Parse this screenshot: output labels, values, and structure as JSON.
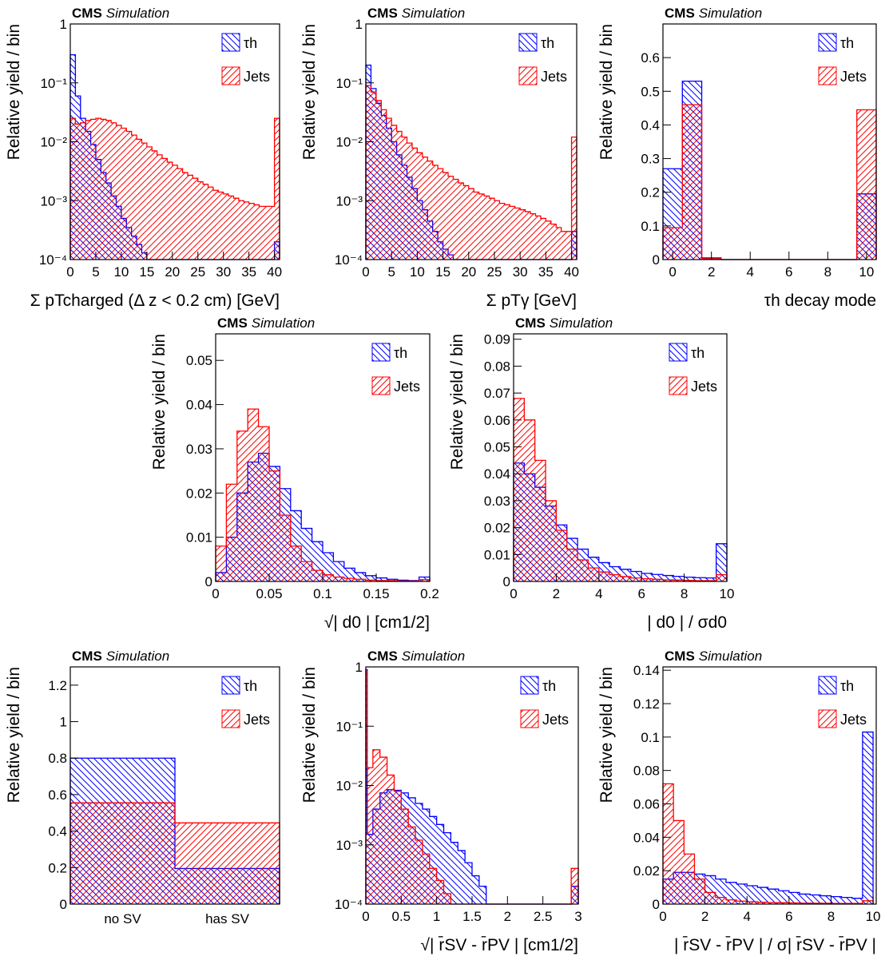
{
  "chart_data": [
    {
      "type": "histogram",
      "title": "CMS",
      "subtitle": "Simulation",
      "ylabel": "Relative yield / bin",
      "xlabel": "Σ pTcharged (Δ z < 0.2 cm) [GeV]",
      "log": true,
      "legend": "upper right",
      "bins": [
        0,
        1,
        2,
        3,
        4,
        5,
        6,
        7,
        8,
        9,
        10,
        11,
        12,
        13,
        14,
        15,
        16,
        17,
        18,
        19,
        20,
        21,
        22,
        23,
        24,
        25,
        26,
        27,
        28,
        29,
        30,
        31,
        32,
        33,
        34,
        35,
        36,
        37,
        38,
        39,
        40,
        41
      ],
      "xlim": [
        0,
        41
      ],
      "xticks": [
        0,
        5,
        10,
        15,
        20,
        25,
        30,
        35,
        40
      ],
      "ylim": [
        0.0001,
        1
      ],
      "yticks": [
        {
          "value": 0.0001,
          "label": "10⁻⁴"
        },
        {
          "value": 0.001,
          "label": "10⁻³"
        },
        {
          "value": 0.01,
          "label": "10⁻²"
        },
        {
          "value": 0.1,
          "label": "10⁻¹"
        },
        1
      ],
      "series": [
        {
          "name": "τh",
          "color": "#0000ff",
          "values": [
            0.3,
            0.06,
            0.025,
            0.015,
            0.009,
            0.005,
            0.003,
            0.002,
            0.0012,
            0.0008,
            0.0005,
            0.00035,
            0.00025,
            0.00018,
            0.00013,
            0.0001,
            0,
            0,
            0,
            0,
            0,
            0,
            0,
            0,
            0,
            0,
            0,
            0,
            0,
            0,
            0,
            0,
            0,
            0,
            0,
            0,
            0,
            0,
            0,
            0,
            0.0002
          ]
        },
        {
          "name": "Jets",
          "color": "#ff0000",
          "values": [
            0.025,
            0.02,
            0.021,
            0.023,
            0.024,
            0.025,
            0.024,
            0.023,
            0.021,
            0.019,
            0.017,
            0.015,
            0.013,
            0.011,
            0.0095,
            0.0082,
            0.007,
            0.006,
            0.0052,
            0.0045,
            0.004,
            0.0035,
            0.003,
            0.0027,
            0.0024,
            0.0021,
            0.0019,
            0.0017,
            0.0015,
            0.0014,
            0.0013,
            0.0012,
            0.0011,
            0.001,
            0.00095,
            0.0009,
            0.00085,
            0.0008,
            0.0008,
            0.0008,
            0.025
          ]
        }
      ]
    },
    {
      "type": "histogram",
      "title": "CMS",
      "subtitle": "Simulation",
      "ylabel": "Relative yield / bin",
      "xlabel": "Σ pTγ [GeV]",
      "log": true,
      "legend": "upper right",
      "bins": [
        0,
        1,
        2,
        3,
        4,
        5,
        6,
        7,
        8,
        9,
        10,
        11,
        12,
        13,
        14,
        15,
        16,
        17,
        18,
        19,
        20,
        21,
        22,
        23,
        24,
        25,
        26,
        27,
        28,
        29,
        30,
        31,
        32,
        33,
        34,
        35,
        36,
        37,
        38,
        39,
        40,
        41
      ],
      "xlim": [
        0,
        41
      ],
      "xticks": [
        0,
        5,
        10,
        15,
        20,
        25,
        30,
        35,
        40
      ],
      "ylim": [
        0.0001,
        1
      ],
      "yticks": [
        {
          "value": 0.0001,
          "label": "10⁻⁴"
        },
        {
          "value": 0.001,
          "label": "10⁻³"
        },
        {
          "value": 0.01,
          "label": "10⁻²"
        },
        {
          "value": 0.1,
          "label": "10⁻¹"
        },
        1
      ],
      "series": [
        {
          "name": "τh",
          "color": "#0000ff",
          "values": [
            0.2,
            0.08,
            0.045,
            0.028,
            0.017,
            0.01,
            0.006,
            0.004,
            0.0025,
            0.0016,
            0.001,
            0.0007,
            0.00045,
            0.0003,
            0.0002,
            0.00015,
            0.00012,
            0.0001,
            0,
            0,
            0,
            0,
            0,
            0,
            0,
            0,
            0,
            0,
            0,
            0,
            0,
            0,
            0,
            0,
            0,
            0,
            0,
            0,
            0,
            0,
            0.0003
          ]
        },
        {
          "name": "Jets",
          "color": "#ff0000",
          "values": [
            0.09,
            0.07,
            0.05,
            0.035,
            0.025,
            0.019,
            0.015,
            0.012,
            0.0095,
            0.0078,
            0.0065,
            0.0055,
            0.0047,
            0.004,
            0.0035,
            0.003,
            0.0026,
            0.0023,
            0.002,
            0.0018,
            0.0016,
            0.0014,
            0.0013,
            0.0012,
            0.0011,
            0.001,
            0.0009,
            0.00085,
            0.0008,
            0.00075,
            0.0007,
            0.00065,
            0.0006,
            0.00055,
            0.0005,
            0.00045,
            0.0004,
            0.00035,
            0.0003,
            0.0003,
            0.012
          ]
        }
      ]
    },
    {
      "type": "histogram",
      "title": "CMS",
      "subtitle": "Simulation",
      "ylabel": "Relative yield / bin",
      "xlabel": "τh decay mode",
      "log": false,
      "legend": "upper right",
      "bins": [
        -0.5,
        0.5,
        1.5,
        2.5,
        3.5,
        4.5,
        5.5,
        6.5,
        7.5,
        8.5,
        9.5,
        10.5
      ],
      "xlim": [
        -0.5,
        10.5
      ],
      "xticks": [
        0,
        2,
        4,
        6,
        8,
        10
      ],
      "ylim": [
        0,
        0.7
      ],
      "yticks": [
        0,
        0.1,
        0.2,
        0.3,
        0.4,
        0.5,
        0.6
      ],
      "series": [
        {
          "name": "τh",
          "color": "#0000ff",
          "values": [
            0.27,
            0.53,
            0.005,
            0,
            0,
            0,
            0,
            0,
            0,
            0,
            0.195
          ]
        },
        {
          "name": "Jets",
          "color": "#ff0000",
          "values": [
            0.095,
            0.46,
            0.003,
            0,
            0,
            0,
            0,
            0,
            0,
            0,
            0.445
          ]
        }
      ]
    },
    {
      "type": "histogram",
      "title": "CMS",
      "subtitle": "Simulation",
      "ylabel": "Relative yield / bin",
      "xlabel": "√| d0 | [cm1/2]",
      "log": false,
      "legend": "upper right",
      "bins": [
        0,
        0.01,
        0.02,
        0.03,
        0.04,
        0.05,
        0.06,
        0.07,
        0.08,
        0.09,
        0.1,
        0.11,
        0.12,
        0.13,
        0.14,
        0.15,
        0.16,
        0.17,
        0.18,
        0.19,
        0.2
      ],
      "xlim": [
        0,
        0.2
      ],
      "xticks": [
        0,
        0.05,
        0.1,
        0.15,
        0.2
      ],
      "ylim": [
        0,
        0.056
      ],
      "yticks": [
        0,
        0.01,
        0.02,
        0.03,
        0.04,
        0.05
      ],
      "series": [
        {
          "name": "τh",
          "color": "#0000ff",
          "values": [
            0.002,
            0.01,
            0.02,
            0.027,
            0.029,
            0.026,
            0.021,
            0.016,
            0.012,
            0.009,
            0.0065,
            0.0045,
            0.003,
            0.002,
            0.0013,
            0.0008,
            0.0005,
            0.0003,
            0.0002,
            0.001
          ]
        },
        {
          "name": "Jets",
          "color": "#ff0000",
          "values": [
            0.008,
            0.022,
            0.034,
            0.039,
            0.035,
            0.025,
            0.015,
            0.008,
            0.0045,
            0.0025,
            0.0015,
            0.001,
            0.0007,
            0.0005,
            0.0003,
            0.0002,
            0.0002,
            0.0001,
            0.0001,
            0.0004
          ]
        }
      ]
    },
    {
      "type": "histogram",
      "title": "CMS",
      "subtitle": "Simulation",
      "ylabel": "Relative yield / bin",
      "xlabel": "| d0 | / σd0",
      "log": false,
      "legend": "upper right",
      "bins": [
        0,
        0.5,
        1,
        1.5,
        2,
        2.5,
        3,
        3.5,
        4,
        4.5,
        5,
        5.5,
        6,
        6.5,
        7,
        7.5,
        8,
        8.5,
        9,
        9.5,
        10
      ],
      "xlim": [
        0,
        10
      ],
      "xticks": [
        0,
        2,
        4,
        6,
        8,
        10
      ],
      "ylim": [
        0,
        0.092
      ],
      "yticks": [
        0,
        0.01,
        0.02,
        0.03,
        0.04,
        0.05,
        0.06,
        0.07,
        0.08,
        0.09
      ],
      "series": [
        {
          "name": "τh",
          "color": "#0000ff",
          "values": [
            0.044,
            0.04,
            0.035,
            0.028,
            0.021,
            0.016,
            0.012,
            0.009,
            0.007,
            0.0055,
            0.0045,
            0.0037,
            0.003,
            0.0026,
            0.0022,
            0.0019,
            0.0016,
            0.0014,
            0.0013,
            0.014
          ]
        },
        {
          "name": "Jets",
          "color": "#ff0000",
          "values": [
            0.068,
            0.06,
            0.045,
            0.03,
            0.019,
            0.012,
            0.008,
            0.005,
            0.0035,
            0.0025,
            0.0018,
            0.0013,
            0.001,
            0.0008,
            0.0006,
            0.0005,
            0.0004,
            0.0003,
            0.0003,
            0.0025
          ]
        }
      ]
    },
    {
      "type": "bar",
      "title": "CMS",
      "subtitle": "Simulation",
      "ylabel": "Relative yield / bin",
      "log": false,
      "legend": "upper right",
      "categories": [
        "no SV",
        "has SV"
      ],
      "ylim": [
        0,
        1.3
      ],
      "yticks": [
        0,
        0.2,
        0.4,
        0.6,
        0.8,
        1,
        1.2
      ],
      "series": [
        {
          "name": "τh",
          "color": "#0000ff",
          "values": [
            0.8,
            0.195
          ]
        },
        {
          "name": "Jets",
          "color": "#ff0000",
          "values": [
            0.555,
            0.445
          ]
        }
      ]
    },
    {
      "type": "histogram",
      "title": "CMS",
      "subtitle": "Simulation",
      "ylabel": "Relative yield / bin",
      "xlabel": "√| r̄SV - r̄PV | [cm1/2]",
      "log": true,
      "legend": "upper right",
      "bins": [
        0,
        0.02,
        0.1,
        0.2,
        0.3,
        0.4,
        0.5,
        0.6,
        0.7,
        0.8,
        0.9,
        1,
        1.1,
        1.2,
        1.3,
        1.4,
        1.5,
        1.6,
        1.7,
        1.8,
        1.9,
        2,
        2.1,
        2.2,
        2.3,
        2.4,
        2.5,
        2.6,
        2.7,
        2.8,
        2.9,
        3
      ],
      "xlim": [
        0,
        3
      ],
      "xticks": [
        0,
        0.5,
        1,
        1.5,
        2,
        2.5,
        3
      ],
      "ylim": [
        0.0001,
        1
      ],
      "yticks": [
        {
          "value": 0.0001,
          "label": "10⁻⁴"
        },
        {
          "value": 0.001,
          "label": "10⁻³"
        },
        {
          "value": 0.01,
          "label": "10⁻²"
        },
        {
          "value": 0.1,
          "label": "10⁻¹"
        },
        1
      ],
      "series": [
        {
          "name": "τh",
          "color": "#0000ff",
          "values": [
            0.9,
            0.0015,
            0.004,
            0.0075,
            0.0085,
            0.0083,
            0.0075,
            0.0062,
            0.005,
            0.004,
            0.003,
            0.0022,
            0.0016,
            0.0011,
            0.0008,
            0.0005,
            0.0003,
            0.0002,
            0,
            0,
            0,
            0,
            0,
            0,
            0,
            0,
            0,
            0,
            0,
            0,
            0.0002
          ]
        },
        {
          "name": "Jets",
          "color": "#ff0000",
          "values": [
            0.85,
            0.02,
            0.04,
            0.03,
            0.015,
            0.008,
            0.004,
            0.002,
            0.0012,
            0.0007,
            0.0004,
            0.00025,
            0.00015,
            0.0001,
            0,
            0,
            0,
            0,
            0,
            0,
            0,
            0,
            0,
            0,
            0,
            0,
            0,
            0,
            0,
            0,
            0.0004
          ]
        }
      ]
    },
    {
      "type": "histogram",
      "title": "CMS",
      "subtitle": "Simulation",
      "ylabel": "Relative yield / bin",
      "xlabel": "| r̄SV - r̄PV | / σ| r̄SV - r̄PV |",
      "log": false,
      "legend": "upper right",
      "bins": [
        0,
        0.5,
        1,
        1.5,
        2,
        2.5,
        3,
        3.5,
        4,
        4.5,
        5,
        5.5,
        6,
        6.5,
        7,
        7.5,
        8,
        8.5,
        9,
        9.5,
        10
      ],
      "xlim": [
        0,
        10.15
      ],
      "xticks": [
        0,
        2,
        4,
        6,
        8,
        10
      ],
      "ylim": [
        0,
        0.142
      ],
      "yticks": [
        0,
        0.02,
        0.04,
        0.06,
        0.08,
        0.1,
        0.12,
        0.14
      ],
      "series": [
        {
          "name": "τh",
          "color": "#0000ff",
          "values": [
            0.015,
            0.019,
            0.019,
            0.018,
            0.017,
            0.015,
            0.013,
            0.012,
            0.011,
            0.01,
            0.009,
            0.008,
            0.007,
            0.006,
            0.0055,
            0.005,
            0.0045,
            0.004,
            0.0035,
            0.103
          ]
        },
        {
          "name": "Jets",
          "color": "#ff0000",
          "values": [
            0.072,
            0.05,
            0.03,
            0.015,
            0.007,
            0.004,
            0.0025,
            0.0018,
            0.0014,
            0.0011,
            0.0009,
            0.0008,
            0.0007,
            0.0006,
            0.0005,
            0.0005,
            0.0004,
            0.0004,
            0.0004,
            0.002
          ]
        }
      ]
    }
  ]
}
